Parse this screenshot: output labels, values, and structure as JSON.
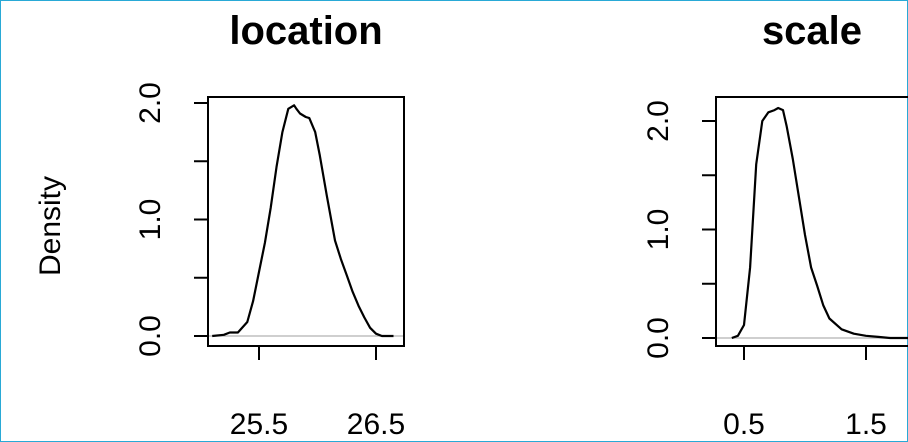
{
  "chart_data": [
    {
      "type": "line",
      "title": "location",
      "xlabel": "",
      "ylabel": "Density",
      "xlim": [
        25.0,
        26.7
      ],
      "ylim": [
        -0.05,
        2.05
      ],
      "xticks": [
        25.5,
        26.5
      ],
      "xtick_labels": [
        "25.5",
        "26.5"
      ],
      "yticks": [
        0.0,
        0.5,
        1.0,
        1.5,
        2.0
      ],
      "ytick_labels": [
        "0.0",
        "",
        "1.0",
        "",
        "2.0"
      ],
      "grid": false,
      "series": [
        {
          "x": [
            25.1,
            25.2,
            25.25,
            25.32,
            25.4,
            25.45,
            25.5,
            25.55,
            25.6,
            25.65,
            25.7,
            25.75,
            25.8,
            25.82,
            25.85,
            25.9,
            25.93,
            25.98,
            26.02,
            26.08,
            26.15,
            26.2,
            26.25,
            26.3,
            26.35,
            26.4,
            26.45,
            26.5,
            26.55,
            26.65
          ],
          "y": [
            0.0,
            0.01,
            0.03,
            0.03,
            0.12,
            0.3,
            0.55,
            0.8,
            1.1,
            1.45,
            1.75,
            1.95,
            1.98,
            1.95,
            1.91,
            1.88,
            1.87,
            1.75,
            1.55,
            1.2,
            0.82,
            0.66,
            0.52,
            0.38,
            0.26,
            0.16,
            0.07,
            0.02,
            0.0,
            0.0
          ],
          "color": "#000000"
        }
      ]
    },
    {
      "type": "line",
      "title": "scale",
      "xlabel": "",
      "ylabel": "",
      "xlim": [
        0.3,
        1.9
      ],
      "ylim": [
        -0.05,
        2.2
      ],
      "xticks": [
        0.5,
        1.5
      ],
      "xtick_labels": [
        "0.5",
        "1.5"
      ],
      "yticks": [
        0.0,
        0.5,
        1.0,
        1.5,
        2.0
      ],
      "ytick_labels": [
        "0.0",
        "",
        "1.0",
        "",
        "2.0"
      ],
      "grid": false,
      "series": [
        {
          "x": [
            0.4,
            0.45,
            0.5,
            0.55,
            0.6,
            0.65,
            0.7,
            0.75,
            0.78,
            0.82,
            0.85,
            0.9,
            0.95,
            1.0,
            1.05,
            1.1,
            1.15,
            1.2,
            1.3,
            1.4,
            1.5,
            1.6,
            1.7,
            1.85
          ],
          "y": [
            0.0,
            0.02,
            0.12,
            0.65,
            1.6,
            2.0,
            2.08,
            2.1,
            2.12,
            2.1,
            1.95,
            1.65,
            1.3,
            0.95,
            0.65,
            0.48,
            0.3,
            0.18,
            0.08,
            0.04,
            0.02,
            0.01,
            0.0,
            0.0
          ],
          "color": "#000000"
        }
      ]
    }
  ]
}
